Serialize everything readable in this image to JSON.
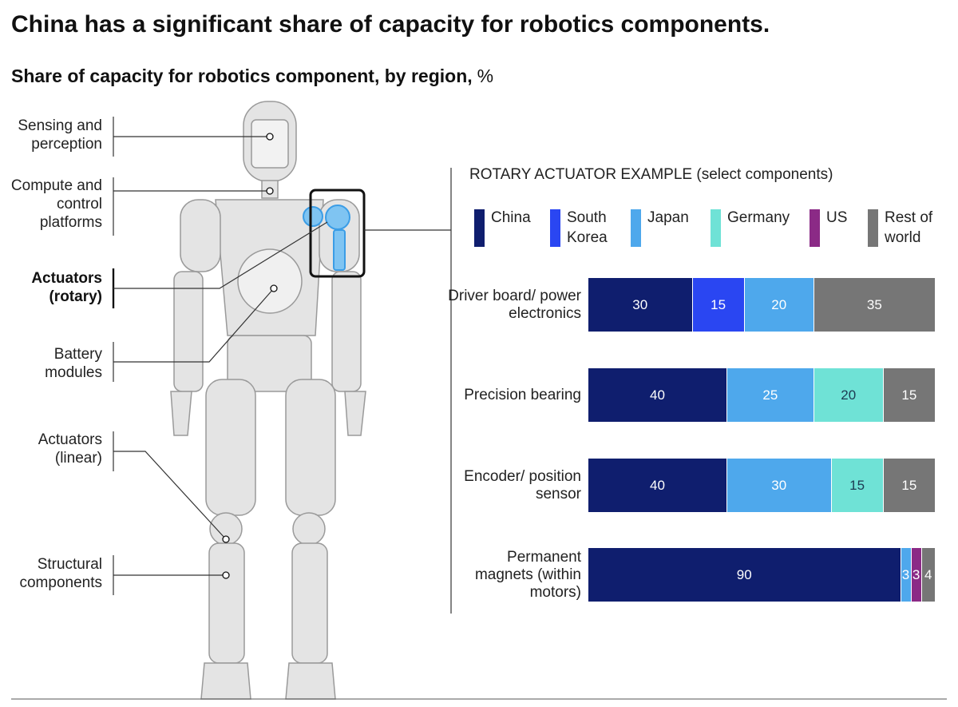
{
  "chart_data": {
    "type": "stacked-bar-horizontal",
    "title": "China has a significant share of capacity for robotics components.",
    "subtitle": "Share of capacity for robotics component, by region,",
    "unit": "%",
    "section_label": "ROTARY ACTUATOR EXAMPLE (select components)",
    "categories": [
      "Driver board/ power electronics",
      "Precision bearing",
      "Encoder/ position sensor",
      "Permanent magnets (within motors)"
    ],
    "xlim": [
      0,
      100
    ],
    "series": [
      {
        "name": "China",
        "color": "#0f1e6e",
        "values": [
          30,
          40,
          40,
          90
        ]
      },
      {
        "name": "South Korea",
        "color": "#2a46f2",
        "values": [
          15,
          null,
          null,
          null
        ]
      },
      {
        "name": "Japan",
        "color": "#4ea8ec",
        "values": [
          20,
          25,
          30,
          3
        ]
      },
      {
        "name": "Germany",
        "color": "#6fe2d6",
        "values": [
          null,
          20,
          15,
          null
        ]
      },
      {
        "name": "US",
        "color": "#8b2a86",
        "values": [
          null,
          null,
          null,
          3
        ]
      },
      {
        "name": "Rest of world",
        "color": "#767676",
        "values": [
          35,
          15,
          15,
          4
        ]
      }
    ]
  },
  "diagram": {
    "labels": [
      "Sensing and perception",
      "Compute and control platforms",
      "Actuators (rotary)",
      "Battery modules",
      "Actuators (linear)",
      "Structural components"
    ]
  }
}
